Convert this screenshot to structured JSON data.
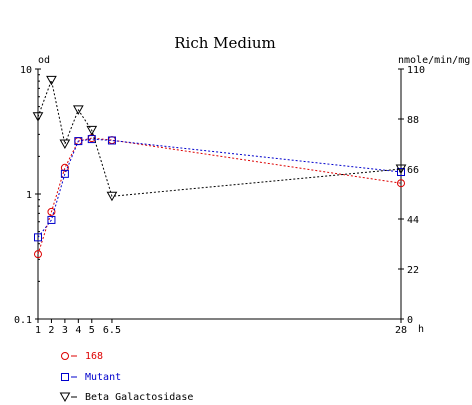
{
  "chart_data": {
    "type": "line",
    "title": "Rich Medium",
    "x": {
      "label": "h",
      "range": [
        1,
        28
      ],
      "ticks": [
        1,
        2,
        3,
        4,
        5,
        6.5,
        28
      ],
      "tick_labels": [
        "1",
        "2",
        "3",
        "4",
        "5",
        "6.5",
        "28"
      ]
    },
    "y_left": {
      "label": "od",
      "scale": "log",
      "range": [
        0.1,
        10
      ],
      "ticks": [
        0.1,
        1,
        10
      ],
      "tick_labels": [
        "0.1",
        "1",
        "10"
      ]
    },
    "y_right": {
      "label": "nmole/min/mg",
      "scale": "linear",
      "range": [
        0,
        110
      ],
      "ticks": [
        0,
        22,
        44,
        66,
        88,
        110
      ],
      "tick_labels": [
        "0",
        "22",
        "44",
        "66",
        "88",
        "110"
      ]
    },
    "grid": false,
    "legend": {
      "position": "bottom-left"
    },
    "series": [
      {
        "name": "168",
        "color": "#dd0000",
        "marker": "circle",
        "axis": "left",
        "x": [
          1,
          2,
          3,
          4,
          5,
          6.5,
          28
        ],
        "values": [
          0.33,
          0.72,
          1.62,
          2.65,
          2.8,
          2.7,
          1.22
        ]
      },
      {
        "name": "Mutant",
        "color": "#0000cc",
        "marker": "square",
        "axis": "left",
        "x": [
          1,
          2,
          3,
          4,
          5,
          6.5,
          28
        ],
        "values": [
          0.45,
          0.62,
          1.45,
          2.65,
          2.75,
          2.68,
          1.5
        ]
      },
      {
        "name": "Beta Galactosidase",
        "color": "#000000",
        "marker": "triangle-down",
        "axis": "right",
        "x": [
          1,
          2,
          3,
          4,
          5,
          6.5,
          28
        ],
        "values": [
          89,
          105,
          77,
          92,
          83,
          54,
          66
        ]
      }
    ]
  }
}
